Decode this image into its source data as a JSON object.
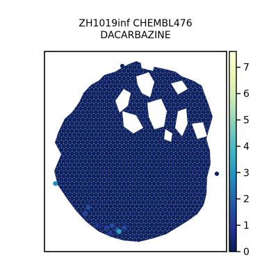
{
  "chart_data": {
    "type": "heatmap",
    "subtype": "hexbin spatial scatter",
    "title_lines": [
      "ZH1019inf CHEMBL476",
      "DACARBAZINE"
    ],
    "xlabel": "",
    "ylabel": "",
    "axes_ticks": false,
    "colormap": "YlGnBu_r",
    "colorbar": {
      "range": [
        0,
        7.6
      ],
      "ticks": [
        0,
        1,
        2,
        3,
        4,
        5,
        6,
        7
      ],
      "tick_labels": [
        "0",
        "1",
        "2",
        "3",
        "4",
        "5",
        "6",
        "7"
      ],
      "colors": [
        "#081d58",
        "#253494",
        "#225ea8",
        "#1d91c0",
        "#41b6c4",
        "#7fcdbb",
        "#c7e9b4",
        "#edf8b1",
        "#ffffd9"
      ]
    },
    "background_value": 0.2,
    "value_summary": "Almost all spots near 0-0.5; a few isolated spots reach about 1.5-3 in the lower-left region.",
    "highlights": [
      {
        "x": 0.06,
        "y": 0.34,
        "value": 2.8
      },
      {
        "x": 0.24,
        "y": 0.22,
        "value": 1.6
      },
      {
        "x": 0.22,
        "y": 0.19,
        "value": 1.3
      },
      {
        "x": 0.4,
        "y": 0.11,
        "value": 1.8
      },
      {
        "x": 0.41,
        "y": 0.1,
        "value": 3.3
      },
      {
        "x": 0.37,
        "y": 0.13,
        "value": 1.5
      },
      {
        "x": 0.34,
        "y": 0.12,
        "value": 1.2
      },
      {
        "x": 0.44,
        "y": 0.12,
        "value": 1.4
      },
      {
        "x": 0.36,
        "y": 0.09,
        "value": 1.1
      },
      {
        "x": 0.29,
        "y": 0.13,
        "value": 1.0
      }
    ]
  }
}
